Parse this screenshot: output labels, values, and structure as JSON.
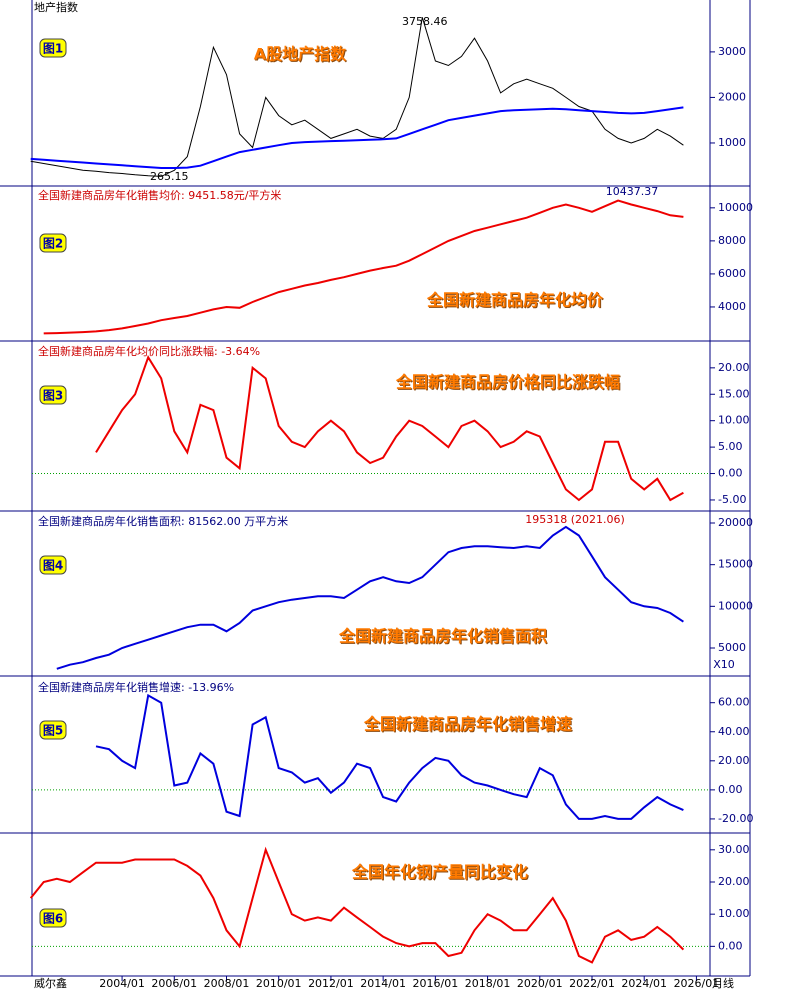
{
  "footer": "威尔鑫",
  "chart_data": [
    {
      "type": "line",
      "title": "地产指数",
      "label": "图1",
      "annotation": "A股地产指数",
      "high_label": "3758.46",
      "low_label": "265.15",
      "xlim": [
        2000.55,
        2026.52
      ],
      "ylim": [
        77,
        3810
      ],
      "yticks": [
        1000,
        2000,
        3000
      ],
      "x": [
        2000.5,
        2001,
        2001.5,
        2002,
        2002.5,
        2003,
        2003.5,
        2004,
        2004.5,
        2005,
        2005.5,
        2006,
        2006.5,
        2007,
        2007.5,
        2008,
        2008.5,
        2009,
        2009.5,
        2010,
        2010.5,
        2011,
        2011.5,
        2012,
        2012.5,
        2013,
        2013.5,
        2014,
        2014.5,
        2015,
        2015.5,
        2016,
        2016.5,
        2017,
        2017.5,
        2018,
        2018.5,
        2019,
        2019.5,
        2020,
        2020.5,
        2021,
        2021.5,
        2022,
        2022.5,
        2023,
        2023.5,
        2024,
        2024.5,
        2025,
        2025.5
      ],
      "series": [
        {
          "color": "#000000",
          "values": [
            600,
            550,
            500,
            450,
            400,
            380,
            350,
            330,
            300,
            280,
            265.15,
            400,
            700,
            1800,
            3100,
            2500,
            1200,
            900,
            2000,
            1600,
            1400,
            1500,
            1300,
            1100,
            1200,
            1300,
            1150,
            1100,
            1300,
            2000,
            3758.46,
            2800,
            2700,
            2900,
            3300,
            2800,
            2100,
            2300,
            2400,
            2300,
            2200,
            2000,
            1800,
            1700,
            1300,
            1100,
            1000,
            1100,
            1300,
            1150,
            950
          ]
        },
        {
          "color": "#0000ff",
          "values": [
            650,
            630,
            610,
            590,
            570,
            550,
            530,
            510,
            490,
            470,
            450,
            450,
            460,
            500,
            600,
            700,
            800,
            850,
            900,
            950,
            1000,
            1020,
            1030,
            1040,
            1050,
            1060,
            1070,
            1080,
            1100,
            1200,
            1300,
            1400,
            1500,
            1550,
            1600,
            1650,
            1700,
            1720,
            1730,
            1740,
            1750,
            1740,
            1720,
            1700,
            1680,
            1660,
            1650,
            1660,
            1700,
            1740,
            1780
          ]
        }
      ]
    },
    {
      "type": "line",
      "title": "全国新建商品房年化销售均价: 9451.58元/平方米",
      "label": "图2",
      "annotation": "全国新建商品房年化均价",
      "peak_label": "10437.37",
      "xlim": [
        2000.55,
        2026.52
      ],
      "ylim": [
        2000,
        11200
      ],
      "yticks": [
        4000,
        6000,
        8000,
        10000
      ],
      "x": [
        2000.5,
        2001,
        2001.5,
        2002,
        2002.5,
        2003,
        2003.5,
        2004,
        2004.5,
        2005,
        2005.5,
        2006,
        2006.5,
        2007,
        2007.5,
        2008,
        2008.5,
        2009,
        2009.5,
        2010,
        2010.5,
        2011,
        2011.5,
        2012,
        2012.5,
        2013,
        2013.5,
        2014,
        2014.5,
        2015,
        2015.5,
        2016,
        2016.5,
        2017,
        2017.5,
        2018,
        2018.5,
        2019,
        2019.5,
        2020,
        2020.5,
        2021,
        2021.5,
        2022,
        2022.5,
        2023,
        2023.5,
        2024,
        2024.5,
        2025,
        2025.5
      ],
      "series": [
        {
          "color": "#ee0000",
          "values": [
            null,
            2400,
            2420,
            2450,
            2480,
            2520,
            2600,
            2700,
            2850,
            3000,
            3200,
            3330,
            3450,
            3650,
            3850,
            4000,
            3950,
            4300,
            4600,
            4900,
            5100,
            5300,
            5450,
            5640,
            5800,
            6000,
            6200,
            6360,
            6500,
            6800,
            7200,
            7600,
            8000,
            8300,
            8600,
            8800,
            9000,
            9200,
            9400,
            9700,
            10000,
            10200,
            10000,
            9760,
            10100,
            10437.37,
            10200,
            10000,
            9800,
            9550,
            9451.58
          ]
        }
      ]
    },
    {
      "type": "line",
      "title": "全国新建商品房年化均价同比涨跌幅: -3.64%",
      "label": "图3",
      "annotation": "全国新建商品房价格同比涨跌幅",
      "zero_line": true,
      "xlim": [
        2000.55,
        2026.52
      ],
      "ylim": [
        -6.9,
        24.7
      ],
      "yticks": [
        {
          "value": -5,
          "label": "-5.00"
        },
        {
          "value": 0,
          "label": "0.00"
        },
        {
          "value": 5,
          "label": "5.00"
        },
        {
          "value": 10,
          "label": "10.00"
        },
        {
          "value": 15,
          "label": "15.00"
        },
        {
          "value": 20,
          "label": "20.00"
        }
      ],
      "x": [
        2000.5,
        2001,
        2001.5,
        2002,
        2002.5,
        2003,
        2003.5,
        2004,
        2004.5,
        2005,
        2005.5,
        2006,
        2006.5,
        2007,
        2007.5,
        2008,
        2008.5,
        2009,
        2009.5,
        2010,
        2010.5,
        2011,
        2011.5,
        2012,
        2012.5,
        2013,
        2013.5,
        2014,
        2014.5,
        2015,
        2015.5,
        2016,
        2016.5,
        2017,
        2017.5,
        2018,
        2018.5,
        2019,
        2019.5,
        2020,
        2020.5,
        2021,
        2021.5,
        2022,
        2022.5,
        2023,
        2023.5,
        2024,
        2024.5,
        2025,
        2025.5
      ],
      "series": [
        {
          "color": "#ee0000",
          "values": [
            null,
            null,
            null,
            null,
            null,
            4,
            8,
            12,
            15,
            22,
            18,
            8,
            4,
            13,
            12,
            3,
            1,
            20,
            18,
            9,
            6,
            5,
            8,
            10,
            8,
            4,
            2,
            3,
            7,
            10,
            9,
            7,
            5,
            9,
            10,
            8,
            5,
            6,
            8,
            7,
            2,
            -3,
            -5,
            -3,
            6,
            6,
            -1,
            -3,
            -1,
            -5,
            -3.64
          ]
        }
      ]
    },
    {
      "type": "line",
      "title": "全国新建商品房年化销售面积: 81562.00 万平方米",
      "label": "图4",
      "annotation": "全国新建商品房年化销售面积",
      "peak_label": "195318 (2021.06)",
      "unit_label": "X10",
      "xlim": [
        2000.55,
        2026.52
      ],
      "ylim": [
        1760,
        21200
      ],
      "yticks": [
        5000,
        10000,
        15000,
        20000
      ],
      "x": [
        2000.5,
        2001,
        2001.5,
        2002,
        2002.5,
        2003,
        2003.5,
        2004,
        2004.5,
        2005,
        2005.5,
        2006,
        2006.5,
        2007,
        2007.5,
        2008,
        2008.5,
        2009,
        2009.5,
        2010,
        2010.5,
        2011,
        2011.5,
        2012,
        2012.5,
        2013,
        2013.5,
        2014,
        2014.5,
        2015,
        2015.5,
        2016,
        2016.5,
        2017,
        2017.5,
        2018,
        2018.5,
        2019,
        2019.5,
        2020,
        2020.5,
        2021,
        2021.5,
        2022,
        2022.5,
        2023,
        2023.5,
        2024,
        2024.5,
        2025,
        2025.5
      ],
      "series": [
        {
          "color": "#0000dd",
          "values": [
            null,
            null,
            2500,
            3000,
            3300,
            3800,
            4200,
            5000,
            5500,
            6000,
            6500,
            7000,
            7500,
            7800,
            7800,
            7000,
            8000,
            9500,
            10000,
            10500,
            10800,
            11000,
            11200,
            11200,
            11000,
            12000,
            13000,
            13500,
            13000,
            12800,
            13500,
            15000,
            16500,
            17000,
            17200,
            17200,
            17100,
            17000,
            17200,
            17000,
            18500,
            19531.8,
            18500,
            16000,
            13500,
            12000,
            10500,
            10000,
            9800,
            9200,
            8156.2
          ]
        }
      ]
    },
    {
      "type": "line",
      "title": "全国新建商品房年化销售增速: -13.96%",
      "label": "图5",
      "annotation": "全国新建商品房年化销售增速",
      "zero_line": true,
      "xlim": [
        2000.55,
        2026.52
      ],
      "ylim": [
        -29,
        77
      ],
      "yticks": [
        {
          "value": -20,
          "label": "-20.00"
        },
        {
          "value": 0,
          "label": "0.00"
        },
        {
          "value": 20,
          "label": "20.00"
        },
        {
          "value": 40,
          "label": "40.00"
        },
        {
          "value": 60,
          "label": "60.00"
        }
      ],
      "x": [
        2000.5,
        2001,
        2001.5,
        2002,
        2002.5,
        2003,
        2003.5,
        2004,
        2004.5,
        2005,
        2005.5,
        2006,
        2006.5,
        2007,
        2007.5,
        2008,
        2008.5,
        2009,
        2009.5,
        2010,
        2010.5,
        2011,
        2011.5,
        2012,
        2012.5,
        2013,
        2013.5,
        2014,
        2014.5,
        2015,
        2015.5,
        2016,
        2016.5,
        2017,
        2017.5,
        2018,
        2018.5,
        2019,
        2019.5,
        2020,
        2020.5,
        2021,
        2021.5,
        2022,
        2022.5,
        2023,
        2023.5,
        2024,
        2024.5,
        2025,
        2025.5
      ],
      "series": [
        {
          "color": "#0000dd",
          "values": [
            null,
            null,
            null,
            null,
            null,
            30,
            28,
            20,
            15,
            65,
            60,
            3,
            5,
            25,
            18,
            -15,
            -18,
            45,
            50,
            15,
            12,
            5,
            8,
            -2,
            5,
            18,
            15,
            -5,
            -8,
            5,
            15,
            22,
            20,
            10,
            5,
            3,
            0,
            -3,
            -5,
            15,
            10,
            -10,
            -20,
            -20,
            -18,
            -20,
            -20,
            -12,
            -5,
            -10,
            -13.96
          ]
        }
      ]
    },
    {
      "type": "line",
      "label": "图6",
      "annotation": "全国年化钢产量同比变化",
      "zero_line": true,
      "x_unit": "月线",
      "xlim": [
        2000.55,
        2026.52
      ],
      "ylim": [
        -8.9,
        34.6
      ],
      "yticks": [
        {
          "value": 0,
          "label": "0.00"
        },
        {
          "value": 10,
          "label": "10.00"
        },
        {
          "value": 20,
          "label": "20.00"
        },
        {
          "value": 30,
          "label": "30.00"
        }
      ],
      "xticks": [
        {
          "value": 2004,
          "label": "2004/01"
        },
        {
          "value": 2006,
          "label": "2006/01"
        },
        {
          "value": 2008,
          "label": "2008/01"
        },
        {
          "value": 2010,
          "label": "2010/01"
        },
        {
          "value": 2012,
          "label": "2012/01"
        },
        {
          "value": 2014,
          "label": "2014/01"
        },
        {
          "value": 2016,
          "label": "2016/01"
        },
        {
          "value": 2018,
          "label": "2018/01"
        },
        {
          "value": 2020,
          "label": "2020/01"
        },
        {
          "value": 2022,
          "label": "2022/01"
        },
        {
          "value": 2024,
          "label": "2024/01"
        },
        {
          "value": 2026,
          "label": "2026/01"
        }
      ],
      "x": [
        2000.5,
        2001,
        2001.5,
        2002,
        2002.5,
        2003,
        2003.5,
        2004,
        2004.5,
        2005,
        2005.5,
        2006,
        2006.5,
        2007,
        2007.5,
        2008,
        2008.5,
        2009,
        2009.5,
        2010,
        2010.5,
        2011,
        2011.5,
        2012,
        2012.5,
        2013,
        2013.5,
        2014,
        2014.5,
        2015,
        2015.5,
        2016,
        2016.5,
        2017,
        2017.5,
        2018,
        2018.5,
        2019,
        2019.5,
        2020,
        2020.5,
        2021,
        2021.5,
        2022,
        2022.5,
        2023,
        2023.5,
        2024,
        2024.5,
        2025,
        2025.5
      ],
      "series": [
        {
          "color": "#ee0000",
          "values": [
            15,
            20,
            21,
            20,
            23,
            26,
            26,
            26,
            27,
            27,
            27,
            27,
            25,
            22,
            15,
            5,
            0,
            15,
            30,
            20,
            10,
            8,
            9,
            8,
            12,
            9,
            6,
            3,
            1,
            0,
            1,
            1,
            -3,
            -2,
            5,
            10,
            8,
            5,
            5,
            10,
            15,
            8,
            -3,
            -5,
            3,
            5,
            2,
            3,
            6,
            3,
            -1
          ]
        }
      ]
    }
  ]
}
